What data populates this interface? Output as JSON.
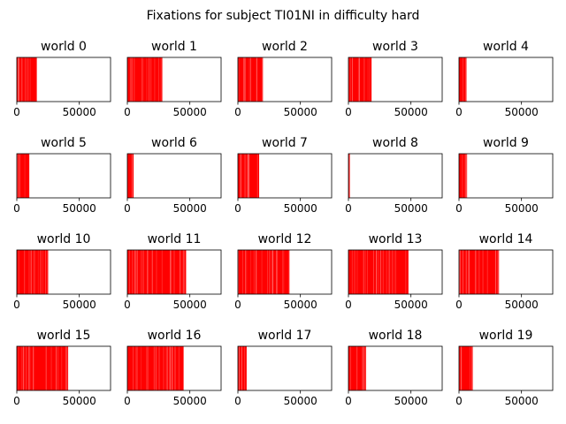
{
  "figure": {
    "title": "Fixations for subject TI01NI in difficulty hard"
  },
  "chart_data": {
    "type": "bar",
    "title": "Fixations for subject TI01NI in difficulty hard",
    "xlim": [
      0,
      75000
    ],
    "xticks": [
      0,
      50000
    ],
    "tick_labels": [
      "0",
      "50000"
    ],
    "mark_color": "#ff0000",
    "panels": [
      {
        "title": "world 0",
        "max_x": 16000
      },
      {
        "title": "world 1",
        "max_x": 28000
      },
      {
        "title": "world 2",
        "max_x": 20000
      },
      {
        "title": "world 3",
        "max_x": 18500
      },
      {
        "title": "world 4",
        "max_x": 6000
      },
      {
        "title": "world 5",
        "max_x": 10000
      },
      {
        "title": "world 6",
        "max_x": 5000
      },
      {
        "title": "world 7",
        "max_x": 17000
      },
      {
        "title": "world 8",
        "max_x": 1200
      },
      {
        "title": "world 9",
        "max_x": 6000
      },
      {
        "title": "world 10",
        "max_x": 25000
      },
      {
        "title": "world 11",
        "max_x": 47000
      },
      {
        "title": "world 12",
        "max_x": 41000
      },
      {
        "title": "world 13",
        "max_x": 48000
      },
      {
        "title": "world 14",
        "max_x": 32000
      },
      {
        "title": "world 15",
        "max_x": 41000
      },
      {
        "title": "world 16",
        "max_x": 45000
      },
      {
        "title": "world 17",
        "max_x": 7000
      },
      {
        "title": "world 18",
        "max_x": 14000
      },
      {
        "title": "world 19",
        "max_x": 11000
      }
    ]
  }
}
